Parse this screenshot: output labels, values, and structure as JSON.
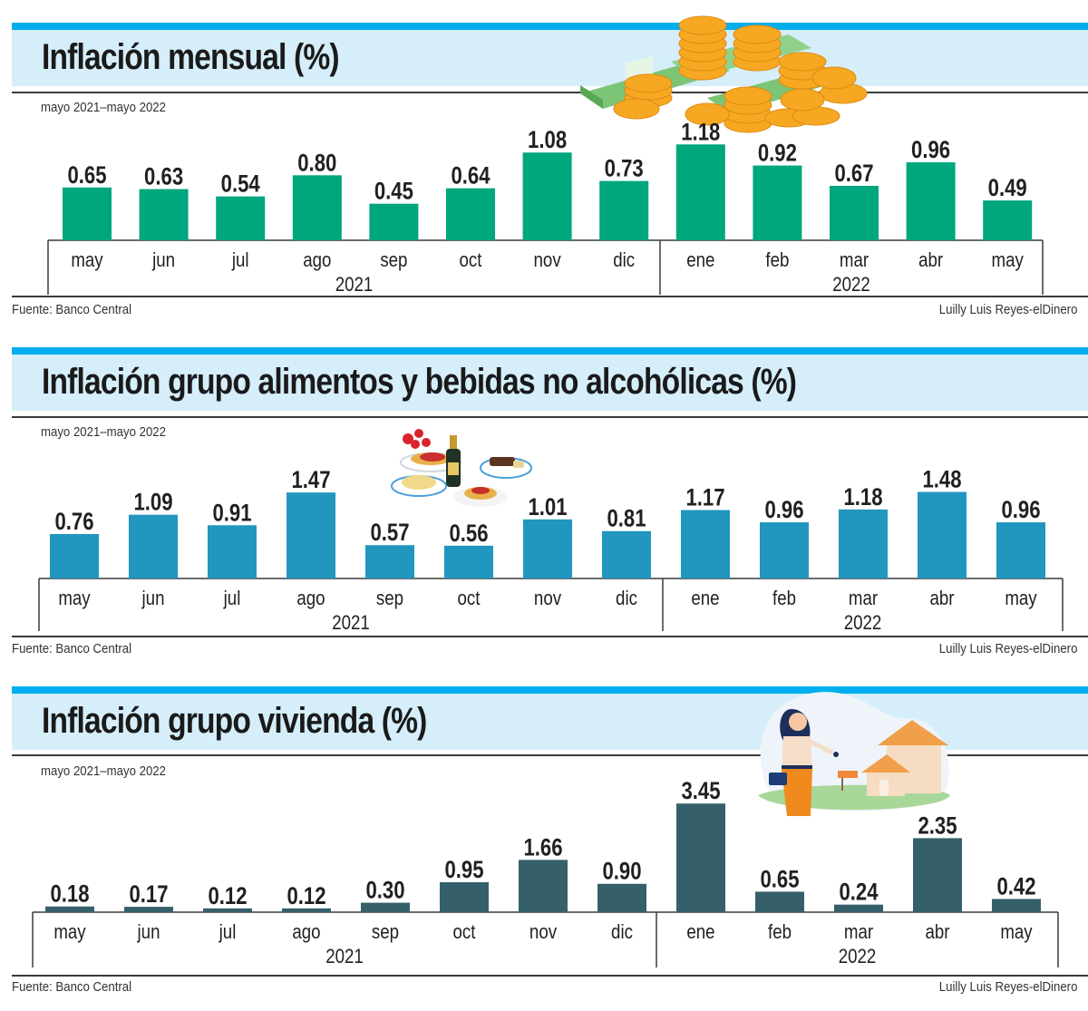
{
  "charts_meta": {
    "subtitle": "mayo 2021–mayo 2022",
    "source": "Fuente: Banco Central",
    "credit": "Luilly Luis Reyes-elDinero"
  },
  "illustrations": {
    "money": "coins-and-bills-illustration",
    "food": "food-and-wine-illustration",
    "housing": "woman-with-house-keys-illustration"
  },
  "chart_data": [
    {
      "type": "bar",
      "title": "Inflación mensual (%)",
      "subtitle": "mayo 2021–mayo 2022",
      "categories": [
        "may",
        "jun",
        "jul",
        "ago",
        "sep",
        "oct",
        "nov",
        "dic",
        "ene",
        "feb",
        "mar",
        "abr",
        "may"
      ],
      "year_groups": [
        {
          "label": "2021",
          "count": 8
        },
        {
          "label": "2022",
          "count": 5
        }
      ],
      "values": [
        0.65,
        0.63,
        0.54,
        0.8,
        0.45,
        0.64,
        1.08,
        0.73,
        1.18,
        0.92,
        0.67,
        0.96,
        0.49
      ],
      "labels": [
        "0.65",
        "0.63",
        "0.54",
        "0.80",
        "0.45",
        "0.64",
        "1.08",
        "0.73",
        "1.18",
        "0.92",
        "0.67",
        "0.96",
        "0.49"
      ],
      "color": "#00a67e",
      "xlabel": "",
      "ylabel": "",
      "ylim": [
        0,
        1.25
      ],
      "grid": false,
      "source": "Fuente: Banco Central",
      "credit": "Luilly Luis Reyes-elDinero"
    },
    {
      "type": "bar",
      "title": "Inflación grupo alimentos y bebidas no alcohólicas (%)",
      "subtitle": "mayo 2021–mayo 2022",
      "categories": [
        "may",
        "jun",
        "jul",
        "ago",
        "sep",
        "oct",
        "nov",
        "dic",
        "ene",
        "feb",
        "mar",
        "abr",
        "may"
      ],
      "year_groups": [
        {
          "label": "2021",
          "count": 8
        },
        {
          "label": "2022",
          "count": 5
        }
      ],
      "values": [
        0.76,
        1.09,
        0.91,
        1.47,
        0.57,
        0.56,
        1.01,
        0.81,
        1.17,
        0.96,
        1.18,
        1.48,
        0.96
      ],
      "labels": [
        "0.76",
        "1.09",
        "0.91",
        "1.47",
        "0.57",
        "0.56",
        "1.01",
        "0.81",
        "1.17",
        "0.96",
        "1.18",
        "1.48",
        "0.96"
      ],
      "color": "#2196be",
      "xlabel": "",
      "ylabel": "",
      "ylim": [
        0,
        1.55
      ],
      "grid": false,
      "source": "Fuente: Banco Central",
      "credit": "Luilly Luis Reyes-elDinero"
    },
    {
      "type": "bar",
      "title": "Inflación grupo vivienda (%)",
      "subtitle": "mayo 2021–mayo 2022",
      "categories": [
        "may",
        "jun",
        "jul",
        "ago",
        "sep",
        "oct",
        "nov",
        "dic",
        "ene",
        "feb",
        "mar",
        "abr",
        "may"
      ],
      "year_groups": [
        {
          "label": "2021",
          "count": 8
        },
        {
          "label": "2022",
          "count": 5
        }
      ],
      "values": [
        0.18,
        0.17,
        0.12,
        0.12,
        0.3,
        0.95,
        1.66,
        0.9,
        3.45,
        0.65,
        0.24,
        2.35,
        0.42
      ],
      "labels": [
        "0.18",
        "0.17",
        "0.12",
        "0.12",
        "0.30",
        "0.95",
        "1.66",
        "0.90",
        "3.45",
        "0.65",
        "0.24",
        "2.35",
        "0.42"
      ],
      "color": "#35606a",
      "xlabel": "",
      "ylabel": "",
      "ylim": [
        0,
        3.6
      ],
      "grid": false,
      "source": "Fuente: Banco Central",
      "credit": "Luilly Luis Reyes-elDinero"
    }
  ]
}
